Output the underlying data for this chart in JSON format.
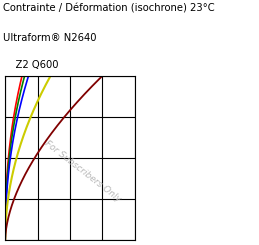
{
  "title_line1": "Contrainte / Déformation (isochrone) 23°C",
  "title_line2": "Ultraform® N2640",
  "title_line3": "    Z2 Q600",
  "watermark": "For Subscribers Only",
  "background_color": "#ffffff",
  "plot_background": "#ffffff",
  "grid_color": "#000000",
  "xlim": [
    0,
    1
  ],
  "ylim": [
    0,
    1
  ],
  "curves": [
    {
      "color": "#ff0000"
    },
    {
      "color": "#008000"
    },
    {
      "color": "#0000ff"
    },
    {
      "color": "#cccc00"
    },
    {
      "color": "#800000"
    }
  ]
}
